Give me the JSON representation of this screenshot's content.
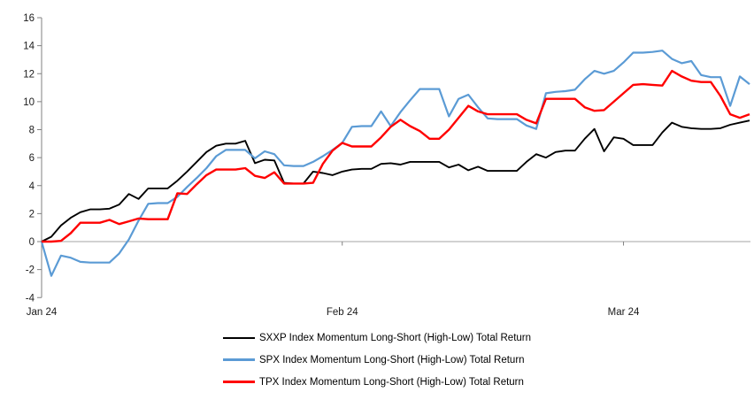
{
  "chart_data": {
    "type": "line",
    "title": "",
    "xlabel": "",
    "ylabel": "",
    "legend_position": "bottom",
    "grid": {
      "zero_line_only": true
    },
    "colors": {
      "axis": "#808080",
      "zero_line": "#a6a6a6",
      "tick_label": "#1a1a1a"
    },
    "y_axis": {
      "min": -4,
      "max": 16,
      "step": 2,
      "tick_labels": [
        "16",
        "14",
        "12",
        "10",
        "8",
        "6",
        "4",
        "2",
        "0",
        "-2",
        "-4"
      ]
    },
    "x_axis": {
      "labels": [
        {
          "text": "Jan 24",
          "index": 0
        },
        {
          "text": "Feb 24",
          "index": 31
        },
        {
          "text": "Mar 24",
          "index": 60
        }
      ]
    },
    "series": [
      {
        "name": "SXXP Index Momentum Long-Short (High-Low) Total Return",
        "color": "#000000",
        "values": [
          0,
          0.35,
          1.15,
          1.7,
          2.1,
          2.3,
          2.3,
          2.35,
          2.65,
          3.4,
          3.05,
          3.8,
          3.8,
          3.8,
          4.35,
          5.0,
          5.7,
          6.4,
          6.85,
          7.0,
          7.0,
          7.2,
          5.6,
          5.85,
          5.8,
          4.2,
          4.15,
          4.15,
          5.0,
          4.9,
          4.75,
          5.0,
          5.15,
          5.2,
          5.2,
          5.55,
          5.6,
          5.5,
          5.7,
          5.7,
          5.7,
          5.7,
          5.3,
          5.5,
          5.1,
          5.35,
          5.05,
          5.05,
          5.05,
          5.05,
          5.7,
          6.25,
          6.0,
          6.4,
          6.5,
          6.5,
          7.35,
          8.05,
          6.45,
          7.45,
          7.35,
          6.9,
          6.9,
          6.9,
          7.8,
          8.5,
          8.2,
          8.1,
          8.05,
          8.05,
          8.1,
          8.35,
          8.5,
          8.65
        ]
      },
      {
        "name": "SPX Index Momentum Long-Short (High-Low) Total Return",
        "color": "#5b9bd5",
        "values": [
          0,
          -2.45,
          -1.0,
          -1.15,
          -1.45,
          -1.5,
          -1.5,
          -1.5,
          -0.85,
          0.15,
          1.5,
          2.7,
          2.75,
          2.75,
          3.2,
          3.9,
          4.55,
          5.25,
          6.1,
          6.55,
          6.55,
          6.55,
          5.95,
          6.45,
          6.25,
          5.45,
          5.4,
          5.4,
          5.7,
          6.1,
          6.55,
          7.05,
          8.2,
          8.25,
          8.25,
          9.3,
          8.25,
          9.25,
          10.1,
          10.9,
          10.9,
          10.9,
          8.95,
          10.2,
          10.5,
          9.6,
          8.8,
          8.75,
          8.75,
          8.75,
          8.3,
          8.05,
          10.6,
          10.7,
          10.75,
          10.85,
          11.6,
          12.2,
          12.0,
          12.2,
          12.8,
          13.5,
          13.5,
          13.55,
          13.65,
          13.05,
          12.75,
          12.9,
          11.9,
          11.75,
          11.75,
          9.7,
          11.8,
          11.25
        ]
      },
      {
        "name": "TPX Index Momentum Long-Short (High-Low) Total Return",
        "color": "#ff0000",
        "values": [
          0,
          0,
          0.05,
          0.6,
          1.35,
          1.35,
          1.35,
          1.55,
          1.25,
          1.45,
          1.65,
          1.6,
          1.6,
          1.6,
          3.45,
          3.4,
          4.1,
          4.75,
          5.15,
          5.15,
          5.15,
          5.25,
          4.7,
          4.55,
          4.95,
          4.15,
          4.15,
          4.15,
          4.2,
          5.55,
          6.5,
          7.05,
          6.8,
          6.8,
          6.8,
          7.45,
          8.2,
          8.7,
          8.25,
          7.9,
          7.35,
          7.35,
          8.0,
          8.85,
          9.7,
          9.3,
          9.1,
          9.1,
          9.1,
          9.1,
          8.7,
          8.45,
          10.2,
          10.2,
          10.2,
          10.2,
          9.6,
          9.35,
          9.4,
          10.0,
          10.6,
          11.2,
          11.25,
          11.2,
          11.15,
          12.2,
          11.8,
          11.5,
          11.4,
          11.4,
          10.4,
          9.1,
          8.85,
          9.1
        ]
      }
    ]
  }
}
